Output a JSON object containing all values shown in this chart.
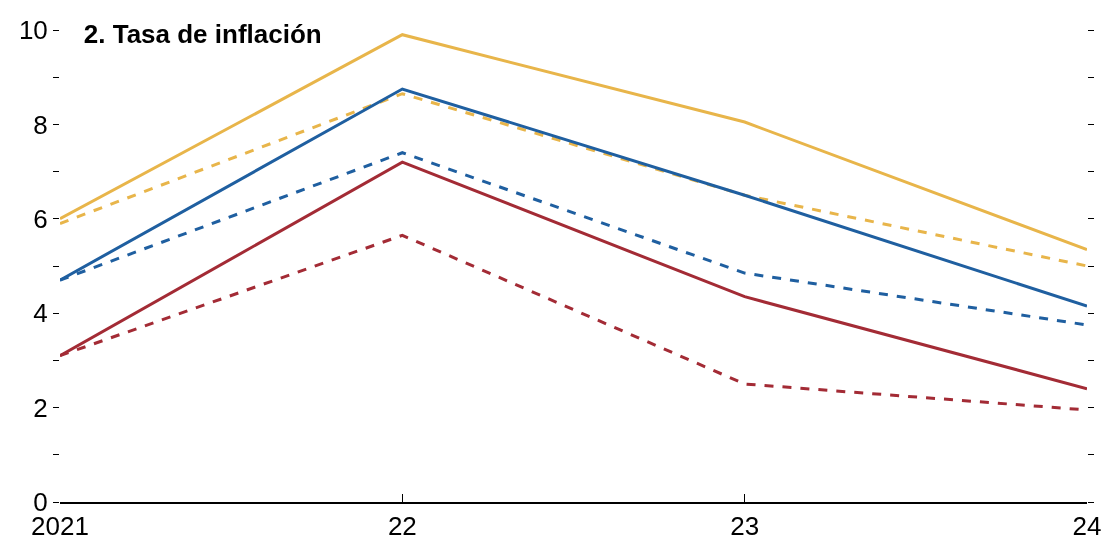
{
  "chart_data": {
    "type": "line",
    "title": "2. Tasa de inflación",
    "x": [
      2021,
      2022,
      2023,
      2024
    ],
    "xlim": [
      2021,
      2024
    ],
    "xticks": [
      {
        "value": 2021,
        "label": "2021"
      },
      {
        "value": 2022,
        "label": "22"
      },
      {
        "value": 2023,
        "label": "23"
      },
      {
        "value": 2024,
        "label": "24"
      }
    ],
    "ylim": [
      0,
      10
    ],
    "yticks": [
      0,
      {
        "value": 1,
        "label": null
      },
      2,
      {
        "value": 3,
        "label": null
      },
      4,
      {
        "value": 5,
        "label": null
      },
      6,
      {
        "value": 7,
        "label": null
      },
      8,
      {
        "value": 9,
        "label": null
      },
      10
    ],
    "marker": "none",
    "series": [
      {
        "color": "#e8b54a",
        "line_style": "solid",
        "values": [
          6.0,
          9.9,
          8.05,
          5.35
        ]
      },
      {
        "color": "#e8b54a",
        "line_style": "dashed",
        "values": [
          5.9,
          8.65,
          6.5,
          5.0
        ]
      },
      {
        "color": "#1f5fa0",
        "line_style": "solid",
        "values": [
          4.7,
          8.75,
          6.5,
          4.15
        ]
      },
      {
        "color": "#1f5fa0",
        "line_style": "dashed",
        "values": [
          4.7,
          7.4,
          4.85,
          3.75
        ]
      },
      {
        "color": "#a32b35",
        "line_style": "solid",
        "values": [
          3.1,
          7.2,
          4.35,
          2.4
        ]
      },
      {
        "color": "#a32b35",
        "line_style": "dashed",
        "values": [
          3.1,
          5.65,
          2.5,
          1.95
        ]
      }
    ]
  }
}
